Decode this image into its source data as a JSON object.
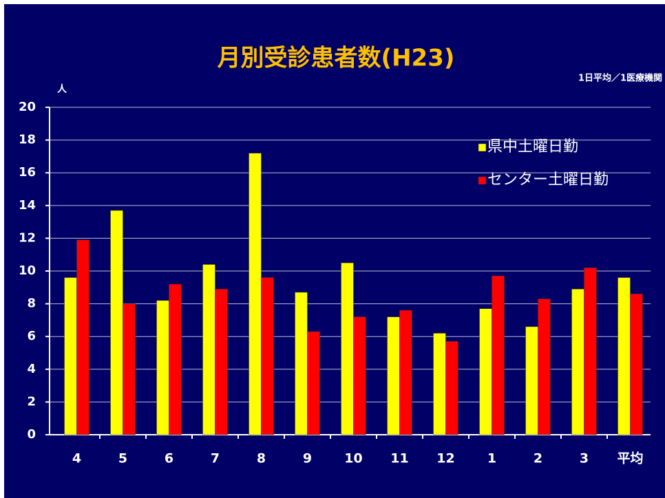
{
  "chart_data": {
    "type": "bar",
    "title": "月別受診患者数(H23)",
    "subtitle": "1日平均／1医療機関",
    "y_label": "人",
    "categories": [
      "4",
      "5",
      "6",
      "7",
      "8",
      "9",
      "10",
      "11",
      "12",
      "1",
      "2",
      "3",
      "平均"
    ],
    "series": [
      {
        "name": "県中土曜日勤",
        "color": "#ffff00",
        "values": [
          9.6,
          13.7,
          8.2,
          10.4,
          17.2,
          8.7,
          10.5,
          7.2,
          6.2,
          7.7,
          6.6,
          8.9,
          9.6
        ]
      },
      {
        "name": "センター土曜日勤",
        "color": "#ff0000",
        "values": [
          11.9,
          8.0,
          9.2,
          8.9,
          9.6,
          6.3,
          7.2,
          7.6,
          5.7,
          9.7,
          8.3,
          10.2,
          8.6
        ]
      }
    ],
    "ylim": [
      0,
      20
    ],
    "yticks": [
      0,
      2,
      4,
      6,
      8,
      10,
      12,
      14,
      16,
      18,
      20
    ],
    "grid": true
  }
}
